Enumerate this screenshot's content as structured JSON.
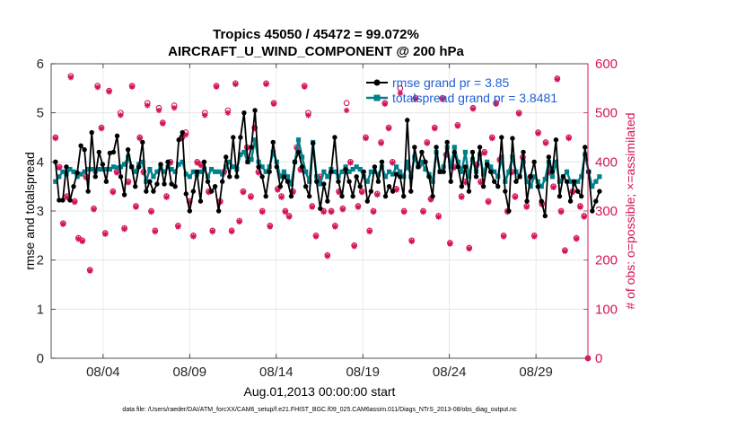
{
  "chart_data": {
    "type": "line",
    "title": "Tropics 45050 / 45472 = 99.072%",
    "subtitle": "AIRCRAFT_U_WIND_COMPONENT @ 200 hPa",
    "xlabel": "Aug.01,2013 00:00:00 start",
    "ylabel_left": "rmse and totalspread",
    "ylabel_right": "# of obs: o=possible; ×=assimilated",
    "footnote": "data file: /Users/raeder/DAI/ATM_forcXX/CAM6_setup/f.e21.FHIST_BGC.f09_025.CAM6assim.011/Diags_NTrS_2013-08/obs_diag_output.nc",
    "xlim": [
      1.0,
      32.0
    ],
    "ylim_left": [
      0,
      6
    ],
    "ylim_right": [
      0,
      600
    ],
    "x_tick_values": [
      4,
      9,
      14,
      19,
      24,
      29
    ],
    "x_tick_labels": [
      "08/04",
      "08/09",
      "08/14",
      "08/19",
      "08/24",
      "08/29"
    ],
    "y_ticks_left": [
      "0",
      "1",
      "2",
      "3",
      "4",
      "5",
      "6"
    ],
    "y_ticks_right": [
      "0",
      "100",
      "200",
      "300",
      "400",
      "500",
      "600"
    ],
    "grid": true,
    "legend_position": "top-right",
    "colors": {
      "rmse": "#000000",
      "spread": "#00808a",
      "obs": "#d4145a",
      "legend_text": "#1f5fd6"
    },
    "series": [
      {
        "name": "rmse grand pr = 3.85",
        "axis": "left",
        "values": [
          4.0,
          3.22,
          3.22,
          3.9,
          3.22,
          3.5,
          3.78,
          4.33,
          4.25,
          3.4,
          4.6,
          3.7,
          4.2,
          3.95,
          3.6,
          4.18,
          4.2,
          4.53,
          3.7,
          3.33,
          4.25,
          3.9,
          3.5,
          3.9,
          4.4,
          3.4,
          3.6,
          3.4,
          3.55,
          3.95,
          3.55,
          4.0,
          3.55,
          3.5,
          4.45,
          4.6,
          3.35,
          3.0,
          3.4,
          3.8,
          3.2,
          4.0,
          3.6,
          3.4,
          3.5,
          3.0,
          3.6,
          4.1,
          3.7,
          4.5,
          3.7,
          4.5,
          5.0,
          4.0,
          4.3,
          5.05,
          3.9,
          3.7,
          3.3,
          3.8,
          4.4,
          3.9,
          3.5,
          3.7,
          3.6,
          3.3,
          4.0,
          4.2,
          3.9,
          3.5,
          3.3,
          4.38,
          3.6,
          3.05,
          3.55,
          3.2,
          3.8,
          4.5,
          3.6,
          3.3,
          3.85,
          3.6,
          3.3,
          3.7,
          3.5,
          3.8,
          3.2,
          3.4,
          3.9,
          3.6,
          4.0,
          3.3,
          3.5,
          3.4,
          3.75,
          3.7,
          3.3,
          4.85,
          3.4,
          4.3,
          3.9,
          4.2,
          4.0,
          3.7,
          3.3,
          4.3,
          3.8,
          3.8,
          4.4,
          3.6,
          4.2,
          3.9,
          3.5,
          3.9,
          3.4,
          4.2,
          3.7,
          4.3,
          3.5,
          3.95,
          3.8,
          3.6,
          3.5,
          4.5,
          3.4,
          3.0,
          4.48,
          3.6,
          3.7,
          4.2,
          3.2,
          3.7,
          4.0,
          3.5,
          3.2,
          2.9,
          4.1,
          3.8,
          4.45,
          3.3,
          3.7,
          3.6,
          3.2,
          3.6,
          3.4,
          3.3,
          4.3,
          3.8,
          3.0,
          3.2,
          3.4
        ],
        "marker": "filled-circle"
      },
      {
        "name": "totalspread grand pr = 3.8481",
        "axis": "left",
        "values": [
          3.6,
          3.7,
          3.8,
          3.75,
          3.85,
          3.8,
          3.7,
          3.75,
          3.8,
          3.85,
          3.85,
          3.8,
          3.85,
          3.85,
          3.85,
          3.85,
          3.9,
          3.88,
          3.9,
          3.95,
          4.1,
          3.9,
          3.8,
          3.95,
          4.0,
          3.6,
          3.85,
          3.7,
          3.8,
          3.9,
          3.8,
          3.9,
          3.85,
          3.8,
          3.95,
          4.0,
          3.75,
          3.7,
          3.8,
          3.75,
          3.8,
          3.85,
          3.7,
          3.85,
          3.8,
          3.8,
          3.75,
          3.9,
          4.0,
          3.9,
          3.85,
          4.15,
          4.2,
          4.0,
          4.05,
          4.45,
          4.0,
          3.9,
          3.8,
          3.9,
          4.2,
          4.0,
          3.7,
          3.8,
          3.7,
          3.55,
          4.0,
          4.45,
          4.1,
          3.8,
          3.6,
          4.4,
          3.7,
          3.55,
          3.8,
          3.7,
          3.85,
          3.8,
          3.7,
          3.8,
          3.9,
          3.8,
          3.85,
          3.9,
          3.85,
          3.7,
          3.6,
          3.8,
          3.8,
          3.75,
          3.9,
          3.7,
          3.8,
          3.75,
          3.9,
          3.8,
          3.7,
          4.0,
          3.7,
          4.1,
          3.9,
          4.0,
          3.85,
          3.75,
          3.6,
          4.2,
          3.8,
          3.9,
          4.3,
          3.9,
          4.3,
          4.0,
          3.8,
          4.2,
          3.7,
          4.05,
          3.8,
          4.15,
          3.75,
          4.0,
          3.9,
          3.8,
          3.7,
          4.1,
          3.6,
          3.8,
          4.1,
          3.8,
          3.7,
          4.0,
          3.6,
          3.5,
          3.7,
          3.6,
          3.5,
          3.65,
          4.0,
          3.7,
          4.0,
          3.6,
          3.7,
          3.8,
          3.6,
          3.55,
          3.6,
          3.7,
          4.15,
          3.8,
          3.5,
          3.6,
          3.7
        ],
        "marker": "filled-square"
      },
      {
        "name": "obs possible",
        "axis": "right",
        "values": [
          450,
          390,
          275,
          330,
          575,
          320,
          245,
          240,
          370,
          180,
          305,
          555,
          470,
          255,
          545,
          340,
          380,
          500,
          265,
          360,
          555,
          310,
          450,
          380,
          520,
          300,
          260,
          510,
          480,
          330,
          400,
          515,
          270,
          450,
          460,
          320,
          250,
          400,
          395,
          500,
          340,
          260,
          555,
          320,
          380,
          505,
          260,
          560,
          280,
          340,
          430,
          330,
          470,
          380,
          300,
          560,
          270,
          520,
          345,
          330,
          300,
          290,
          340,
          430,
          385,
          555,
          500,
          310,
          250,
          370,
          300,
          210,
          300,
          270,
          340,
          305,
          520,
          400,
          230,
          310,
          340,
          450,
          260,
          300,
          335,
          440,
          520,
          470,
          400,
          345,
          550,
          300,
          390,
          240,
          530,
          395,
          300,
          440,
          325,
          470,
          290,
          530,
          415,
          235,
          390,
          475,
          330,
          360,
          225,
          510,
          395,
          360,
          420,
          320,
          450,
          520,
          405,
          250,
          300,
          380,
          330,
          500,
          410,
          310,
          370,
          250,
          460,
          315,
          440,
          380,
          350,
          570,
          300,
          220,
          450,
          340,
          245,
          310,
          290,
          0
        ],
        "marker": "open-circle"
      },
      {
        "name": "obs assimilated",
        "axis": "right",
        "values": [
          448,
          388,
          273,
          328,
          572,
          318,
          243,
          238,
          368,
          178,
          303,
          552,
          468,
          253,
          543,
          338,
          378,
          495,
          263,
          358,
          553,
          308,
          448,
          378,
          515,
          298,
          258,
          505,
          478,
          328,
          398,
          510,
          268,
          448,
          455,
          318,
          248,
          398,
          393,
          495,
          338,
          258,
          553,
          318,
          378,
          500,
          258,
          558,
          278,
          338,
          428,
          328,
          468,
          378,
          298,
          558,
          268,
          518,
          343,
          328,
          298,
          288,
          338,
          428,
          383,
          553,
          495,
          308,
          248,
          368,
          298,
          208,
          298,
          268,
          338,
          303,
          505,
          398,
          228,
          308,
          338,
          448,
          258,
          298,
          333,
          438,
          518,
          468,
          398,
          343,
          540,
          298,
          388,
          238,
          528,
          393,
          298,
          438,
          323,
          468,
          288,
          528,
          413,
          233,
          388,
          473,
          328,
          358,
          223,
          508,
          393,
          358,
          418,
          318,
          448,
          518,
          403,
          248,
          298,
          378,
          328,
          498,
          408,
          308,
          368,
          248,
          458,
          313,
          438,
          378,
          348,
          568,
          298,
          218,
          448,
          338,
          243,
          308,
          288,
          0
        ],
        "marker": "asterisk"
      }
    ]
  }
}
